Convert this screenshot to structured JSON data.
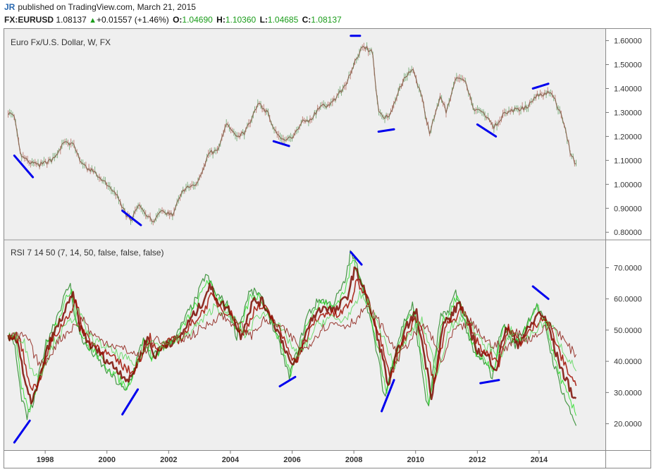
{
  "header": {
    "author_initials": "JR",
    "published_text": "published on TradingView.com, March 21, 2015",
    "symbol": "FX:EURUSD",
    "last": "1.08137",
    "change": "+0.01557 (+1.46%)",
    "open_label": "O:",
    "open": "1.04690",
    "high_label": "H:",
    "high": "1.10360",
    "low_label": "L:",
    "low": "1.04685",
    "close_label": "C:",
    "close": "1.08137"
  },
  "price_pane": {
    "title": "Euro Fx/U.S. Dollar, W, FX",
    "axis_labels": [
      "1.60000",
      "1.50000",
      "1.40000",
      "1.30000",
      "1.20000",
      "1.10000",
      "1.00000",
      "0.90000",
      "0.80000"
    ]
  },
  "rsi_pane": {
    "title": "RSI 7 14 50 (7, 14, 50, false, false, false)",
    "axis_labels": [
      "70.0000",
      "60.0000",
      "50.0000",
      "40.0000",
      "30.0000",
      "20.0000"
    ]
  },
  "x_axis": {
    "labels": [
      "1998",
      "2000",
      "2002",
      "2004",
      "2006",
      "2008",
      "2010",
      "2012",
      "2014"
    ]
  },
  "colors": {
    "candle": "#8a6a55",
    "rsi_up": "#22dd22",
    "rsi_down": "#cc1100",
    "rsi_dark": "#7a0a00",
    "trend_line": "#0000ee",
    "pane_bg": "#efefef"
  },
  "chart_data": [
    {
      "type": "line",
      "title": "Euro Fx/U.S. Dollar, W, FX",
      "x": [
        1996.8,
        1997.0,
        1997.2,
        1997.5,
        1997.8,
        1998.2,
        1998.6,
        1998.9,
        1999.2,
        1999.6,
        1999.9,
        2000.3,
        2000.5,
        2000.8,
        2001.0,
        2001.3,
        2001.5,
        2001.8,
        2002.1,
        2002.5,
        2002.9,
        2003.3,
        2003.6,
        2003.9,
        2004.2,
        2004.5,
        2004.9,
        2005.2,
        2005.5,
        2005.8,
        2006.0,
        2006.3,
        2006.6,
        2006.9,
        2007.3,
        2007.7,
        2008.0,
        2008.3,
        2008.6,
        2008.8,
        2009.0,
        2009.2,
        2009.5,
        2009.9,
        2010.2,
        2010.45,
        2010.8,
        2011.0,
        2011.3,
        2011.6,
        2011.9,
        2012.2,
        2012.55,
        2012.9,
        2013.2,
        2013.6,
        2013.9,
        2014.2,
        2014.4,
        2014.8,
        2015.0,
        2015.2
      ],
      "y": [
        1.3,
        1.28,
        1.12,
        1.09,
        1.08,
        1.1,
        1.17,
        1.17,
        1.08,
        1.05,
        1.01,
        0.96,
        0.9,
        0.84,
        0.92,
        0.86,
        0.85,
        0.89,
        0.87,
        0.98,
        1.0,
        1.13,
        1.14,
        1.26,
        1.2,
        1.22,
        1.34,
        1.3,
        1.21,
        1.18,
        1.2,
        1.26,
        1.27,
        1.32,
        1.34,
        1.41,
        1.5,
        1.58,
        1.55,
        1.3,
        1.28,
        1.3,
        1.41,
        1.49,
        1.36,
        1.21,
        1.37,
        1.3,
        1.44,
        1.43,
        1.31,
        1.3,
        1.24,
        1.3,
        1.31,
        1.32,
        1.37,
        1.38,
        1.39,
        1.26,
        1.14,
        1.08
      ],
      "ylim": [
        0.78,
        1.64
      ],
      "trend_lines": [
        {
          "x": [
            1997.0,
            1997.6
          ],
          "y": [
            1.12,
            1.03
          ]
        },
        {
          "x": [
            2000.5,
            2001.1
          ],
          "y": [
            0.89,
            0.83
          ]
        },
        {
          "x": [
            2005.4,
            2005.9
          ],
          "y": [
            1.18,
            1.16
          ]
        },
        {
          "x": [
            2007.9,
            2008.2
          ],
          "y": [
            1.62,
            1.62
          ]
        },
        {
          "x": [
            2008.8,
            2009.3
          ],
          "y": [
            1.22,
            1.23
          ]
        },
        {
          "x": [
            2012.0,
            2012.6
          ],
          "y": [
            1.25,
            1.2
          ]
        },
        {
          "x": [
            2013.8,
            2014.3
          ],
          "y": [
            1.4,
            1.42
          ]
        }
      ]
    },
    {
      "type": "line",
      "title": "RSI 7 14 50 (7, 14, 50, false, false, false)",
      "x": [
        1996.8,
        1997.0,
        1997.2,
        1997.4,
        1997.6,
        1998.0,
        1998.4,
        1998.8,
        1999.0,
        1999.3,
        1999.6,
        1999.9,
        2000.2,
        2000.6,
        2000.9,
        2001.2,
        2001.4,
        2001.8,
        2002.2,
        2002.6,
        2002.9,
        2003.2,
        2003.5,
        2003.9,
        2004.2,
        2004.6,
        2004.9,
        2005.2,
        2005.6,
        2005.9,
        2006.2,
        2006.5,
        2006.9,
        2007.3,
        2007.7,
        2007.9,
        2008.2,
        2008.5,
        2008.8,
        2009.0,
        2009.3,
        2009.6,
        2009.9,
        2010.2,
        2010.4,
        2010.8,
        2011.0,
        2011.3,
        2011.6,
        2011.9,
        2012.2,
        2012.5,
        2012.8,
        2013.2,
        2013.6,
        2013.9,
        2014.2,
        2014.4,
        2014.7,
        2015.0,
        2015.2
      ],
      "y": [
        48,
        46,
        30,
        22,
        26,
        45,
        55,
        65,
        52,
        45,
        42,
        38,
        35,
        30,
        38,
        48,
        40,
        45,
        47,
        55,
        60,
        68,
        62,
        58,
        48,
        62,
        62,
        56,
        45,
        35,
        44,
        55,
        60,
        58,
        65,
        75,
        68,
        55,
        40,
        28,
        42,
        52,
        58,
        38,
        24,
        54,
        55,
        62,
        52,
        42,
        40,
        35,
        52,
        45,
        52,
        58,
        52,
        42,
        32,
        24,
        20
      ],
      "ylim": [
        12,
        78
      ],
      "trend_lines": [
        {
          "x": [
            1997.0,
            1997.5
          ],
          "y": [
            14,
            21
          ]
        },
        {
          "x": [
            2000.5,
            2001.0
          ],
          "y": [
            23,
            31
          ]
        },
        {
          "x": [
            2005.6,
            2006.1
          ],
          "y": [
            32,
            35
          ]
        },
        {
          "x": [
            2007.9,
            2008.25
          ],
          "y": [
            75,
            71
          ]
        },
        {
          "x": [
            2008.9,
            2009.3
          ],
          "y": [
            24,
            34
          ]
        },
        {
          "x": [
            2012.1,
            2012.7
          ],
          "y": [
            33,
            34
          ]
        },
        {
          "x": [
            2013.8,
            2014.3
          ],
          "y": [
            64,
            60
          ]
        }
      ]
    }
  ]
}
